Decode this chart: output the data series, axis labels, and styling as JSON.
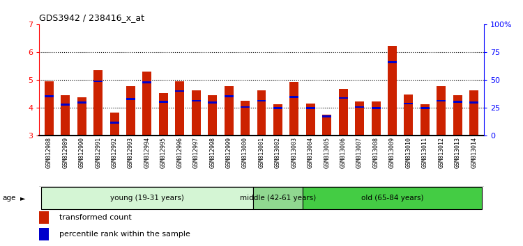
{
  "title": "GDS3942 / 238416_x_at",
  "samples": [
    "GSM812988",
    "GSM812989",
    "GSM812990",
    "GSM812991",
    "GSM812992",
    "GSM812993",
    "GSM812994",
    "GSM812995",
    "GSM812996",
    "GSM812997",
    "GSM812998",
    "GSM812999",
    "GSM813000",
    "GSM813001",
    "GSM813002",
    "GSM813003",
    "GSM813004",
    "GSM813005",
    "GSM813006",
    "GSM813007",
    "GSM813008",
    "GSM813009",
    "GSM813010",
    "GSM813011",
    "GSM813012",
    "GSM813013",
    "GSM813014"
  ],
  "red_values": [
    4.95,
    4.45,
    4.38,
    5.35,
    3.82,
    4.78,
    5.3,
    4.52,
    4.95,
    4.62,
    4.45,
    4.78,
    4.25,
    4.62,
    4.12,
    4.92,
    4.15,
    3.75,
    4.68,
    4.22,
    4.22,
    6.22,
    4.48,
    4.12,
    4.78,
    4.45,
    4.62
  ],
  "blue_values": [
    4.42,
    4.1,
    4.18,
    4.95,
    3.45,
    4.32,
    4.92,
    4.22,
    4.6,
    4.25,
    4.18,
    4.42,
    4.02,
    4.25,
    3.98,
    4.38,
    3.98,
    3.68,
    4.35,
    4.02,
    3.98,
    5.65,
    4.15,
    3.98,
    4.25,
    4.22,
    4.18
  ],
  "y_min": 3.0,
  "y_max": 7.0,
  "y_ticks": [
    3,
    4,
    5,
    6,
    7
  ],
  "y_right_ticks": [
    0,
    25,
    50,
    75,
    100
  ],
  "y_right_labels": [
    "0",
    "25",
    "50",
    "75",
    "100%"
  ],
  "groups": [
    {
      "label": "young (19-31 years)",
      "start": 0,
      "end": 13,
      "color": "#d4f5d4"
    },
    {
      "label": "middle (42-61 years)",
      "start": 13,
      "end": 16,
      "color": "#90d890"
    },
    {
      "label": "old (65-84 years)",
      "start": 16,
      "end": 27,
      "color": "#44cc44"
    }
  ],
  "bar_color_red": "#cc2200",
  "bar_color_blue": "#0000cc",
  "bar_width": 0.55,
  "legend_red": "transformed count",
  "legend_blue": "percentile rank within the sample",
  "xlabel_gray": "#d0d0d0",
  "figure_bg": "#ffffff",
  "plot_bg": "#ffffff"
}
